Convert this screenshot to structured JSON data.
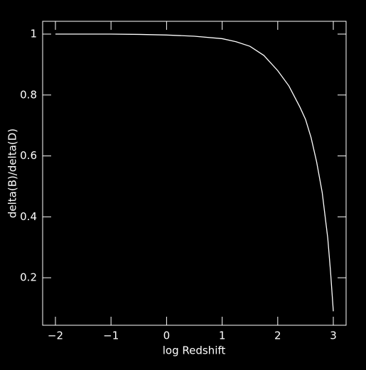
{
  "chart_data": {
    "type": "line",
    "xlabel": "log Redshift",
    "ylabel": "delta(B)/delta(D)",
    "x": [
      -2,
      -1.5,
      -1,
      -0.5,
      0,
      0.5,
      1,
      1.25,
      1.5,
      1.75,
      2,
      2.2,
      2.4,
      2.5,
      2.6,
      2.7,
      2.8,
      2.9,
      2.95,
      3
    ],
    "series": [
      {
        "color": "#ffffff",
        "values": [
          1,
          1,
          1,
          0.999,
          0.997,
          0.993,
          0.985,
          0.975,
          0.96,
          0.93,
          0.88,
          0.83,
          0.76,
          0.72,
          0.66,
          0.58,
          0.48,
          0.33,
          0.22,
          0.09
        ]
      }
    ],
    "xlim": [
      -2.23,
      3.23
    ],
    "ylim": [
      0.044,
      1.042
    ],
    "xticks": [
      {
        "value": -2,
        "label": "−2"
      },
      {
        "value": -1,
        "label": "−1"
      },
      0,
      1,
      2,
      3
    ],
    "yticks": [
      0.2,
      0.4,
      0.6,
      0.8,
      1
    ]
  }
}
